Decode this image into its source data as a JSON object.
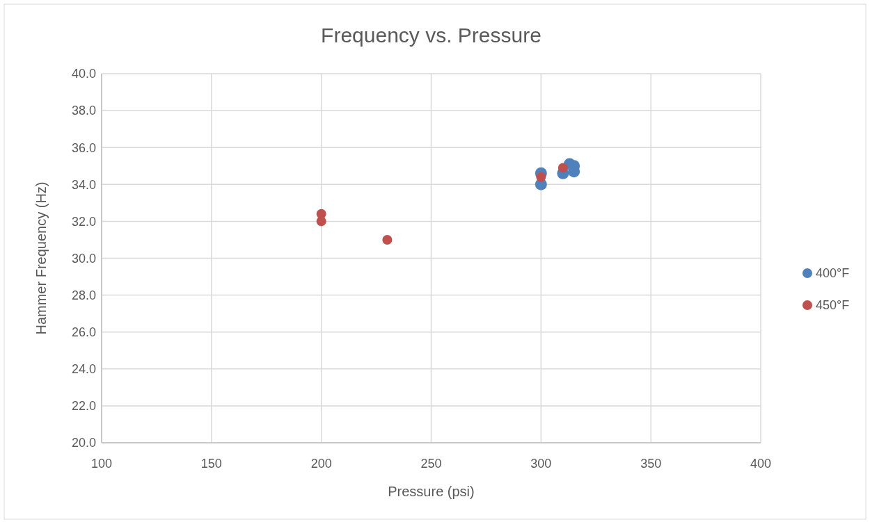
{
  "chart_data": {
    "type": "scatter",
    "title": "Frequency vs. Pressure",
    "xlabel": "Pressure (psi)",
    "ylabel": "Hammer Frequency (Hz)",
    "xlim": [
      100,
      400
    ],
    "xticks": [
      100,
      150,
      200,
      250,
      300,
      350,
      400
    ],
    "ylim": [
      20,
      40
    ],
    "yticks": [
      {
        "value": 20,
        "label": "20.0"
      },
      {
        "value": 22,
        "label": "22.0"
      },
      {
        "value": 24,
        "label": "24.0"
      },
      {
        "value": 26,
        "label": "26.0"
      },
      {
        "value": 28,
        "label": "28.0"
      },
      {
        "value": 30,
        "label": "30.0"
      },
      {
        "value": 32,
        "label": "32.0"
      },
      {
        "value": 34,
        "label": "34.0"
      },
      {
        "value": 36,
        "label": "36.0"
      },
      {
        "value": 38,
        "label": "38.0"
      },
      {
        "value": 40,
        "label": "40.0"
      }
    ],
    "grid": true,
    "legend": "right",
    "marker": "circle",
    "series": [
      {
        "name": "400°F",
        "color": "#4f81bd",
        "x": [
          300,
          300,
          310,
          313,
          315,
          315
        ],
        "values": [
          34.0,
          34.6,
          34.6,
          35.1,
          35.0,
          34.7
        ]
      },
      {
        "name": "450°F",
        "color": "#c0504d",
        "x": [
          200,
          200,
          230,
          300,
          310
        ],
        "values": [
          32.4,
          32.0,
          31.0,
          34.4,
          34.9
        ]
      }
    ]
  }
}
